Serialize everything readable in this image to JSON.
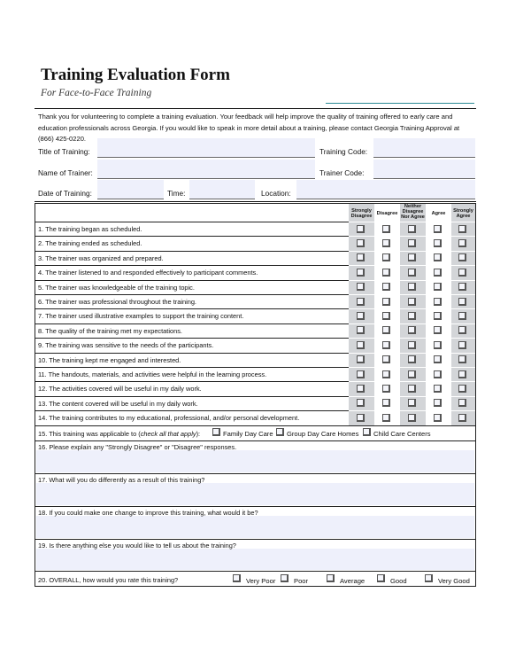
{
  "header": {
    "title": "Training Evaluation Form",
    "subtitle": "For Face-to-Face Training"
  },
  "intro": "Thank you for volunteering to complete a training evaluation. Your feedback will help improve the quality of training offered to early care and education professionals across Georgia. If you would like to speak in more detail about a training, please contact Georgia Training Approval at (866) 425-0220.",
  "fields": {
    "title_of_training": "Title of Training:",
    "training_code": "Training Code:",
    "name_of_trainer": "Name of Trainer:",
    "trainer_code": "Trainer Code:",
    "date_of_training": "Date of Training:",
    "time": "Time:",
    "location": "Location:"
  },
  "scale": [
    "Strongly Disagree",
    "Disagree",
    "Neither Disagree Nor Agree",
    "Agree",
    "Strongly Agree"
  ],
  "statements": [
    "1.  The training began as scheduled.",
    "2.  The training ended as scheduled.",
    "3.  The trainer was organized and prepared.",
    "4.  The trainer listened to and responded effectively to participant comments.",
    "5.  The trainer was knowledgeable of the training topic.",
    "6.  The trainer was professional throughout the training.",
    "7.  The trainer used illustrative examples to support the training content.",
    "8.  The quality of the training met my expectations.",
    "9.  The training was sensitive to the needs of the participants.",
    "10. The training kept me engaged and interested.",
    "11. The handouts, materials, and activities were helpful in the learning process.",
    "12. The activities covered will be useful in my daily work.",
    "13. The content covered will be useful in my daily work.",
    "14. The training contributes to my educational, professional, and/or personal development."
  ],
  "q15": {
    "prefix": "15. This training was applicable to (",
    "italic": "check all that apply",
    "suffix": "):",
    "options": [
      "Family Day Care",
      "Group Day Care Homes",
      "Child Care Centers"
    ]
  },
  "q16": "16. Please explain any \"Strongly Disagree\" or \"Disagree\" responses.",
  "q17": "17. What will you do differently as a result of this training?",
  "q18": "18. If you could make one change to improve this training, what would it be?",
  "q19": "19. Is there anything else you would like to tell us about the training?",
  "q20": {
    "label": "20. OVERALL, how would you rate this training?",
    "options": [
      "Very Poor",
      "Poor",
      "Average",
      "Good",
      "Very Good"
    ]
  }
}
